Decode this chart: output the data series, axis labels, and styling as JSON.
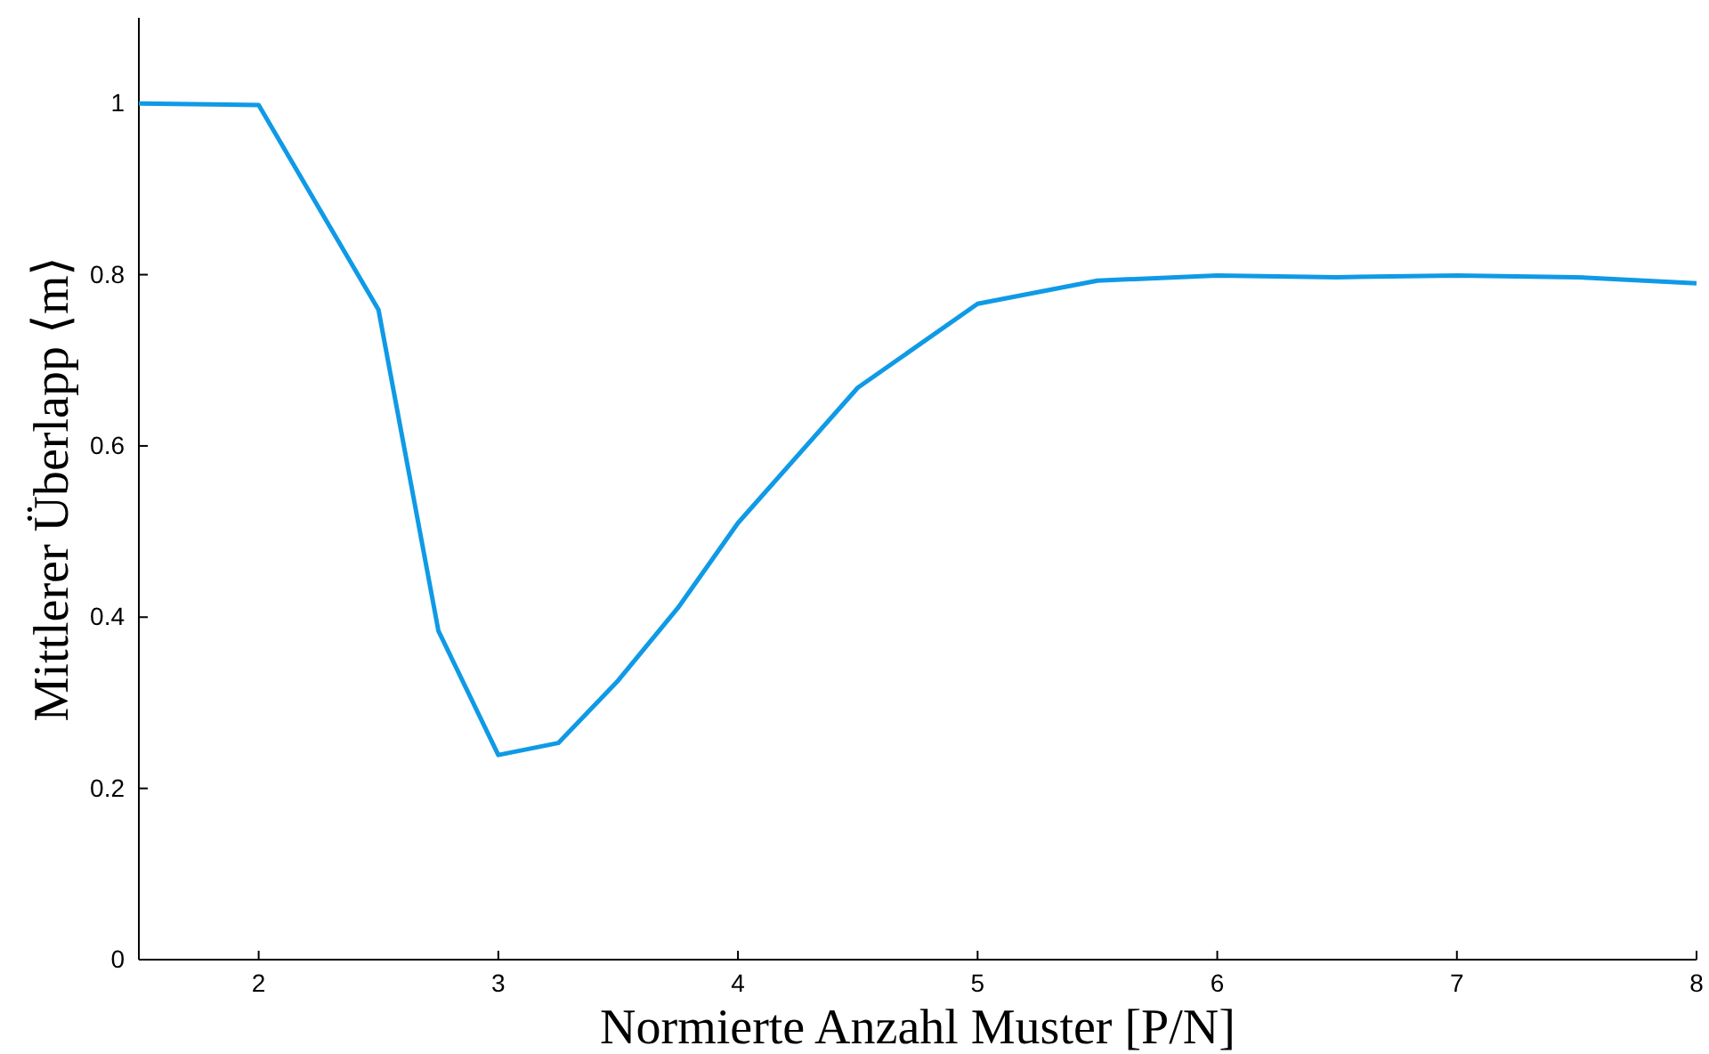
{
  "chart_data": {
    "type": "line",
    "xlabel": "Normierte Anzahl Muster [P/N]",
    "ylabel": "Mittlerer Überlapp ⟨m⟩",
    "x": [
      1.5,
      2,
      2.5,
      2.75,
      3,
      3.25,
      3.5,
      3.75,
      4,
      4.5,
      5,
      5.5,
      6,
      6.5,
      7,
      7.5,
      8
    ],
    "series": [
      {
        "color": "#0f9ae6",
        "values": [
          1.0,
          0.998,
          0.759,
          0.384,
          0.239,
          0.253,
          0.326,
          0.411,
          0.51,
          0.668,
          0.766,
          0.793,
          0.799,
          0.797,
          0.799,
          0.797,
          0.79
        ]
      }
    ],
    "xlim": [
      1.5,
      8
    ],
    "xticks": [
      2,
      3,
      4,
      5,
      6,
      7,
      8
    ],
    "ylim": [
      0,
      1.1
    ],
    "yticks": [
      0,
      0.2,
      0.4,
      0.6,
      0.8,
      1
    ],
    "grid": false,
    "marker": "none",
    "line_style": "solid"
  }
}
